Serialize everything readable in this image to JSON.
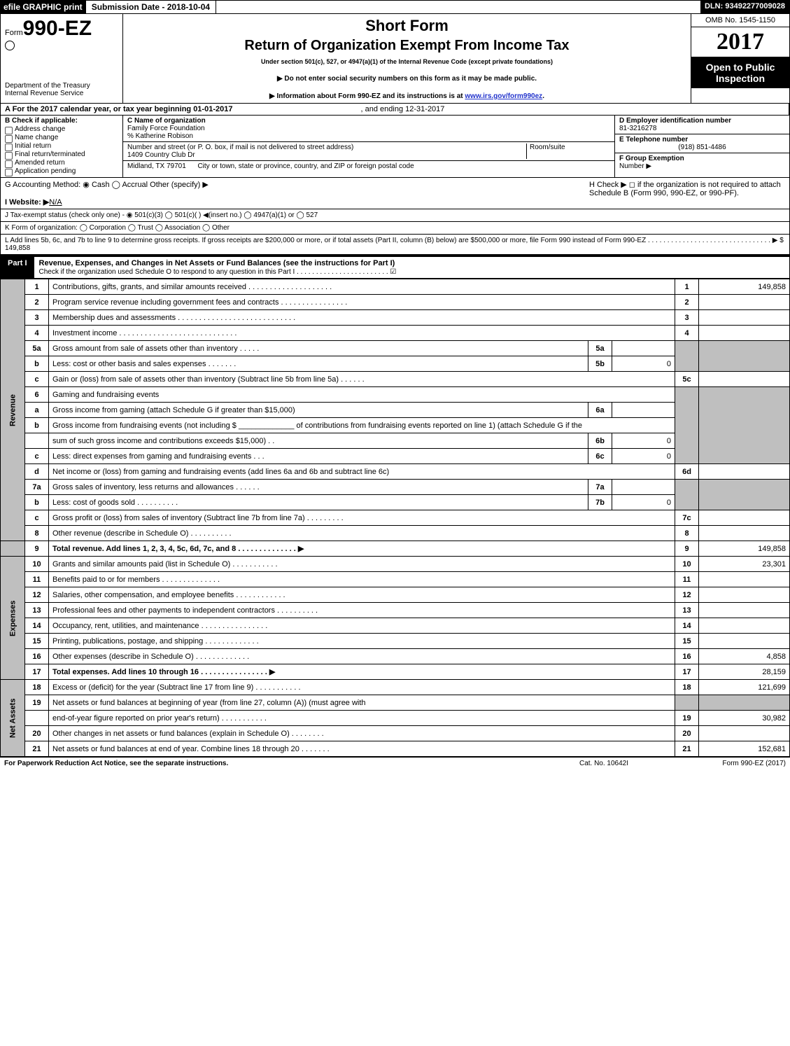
{
  "header": {
    "efile": "efile GRAPHIC print",
    "submission": "Submission Date - 2018-10-04",
    "dln": "DLN: 93492277009028"
  },
  "top": {
    "form_prefix": "Form",
    "form_no": "990-EZ",
    "dept1": "Department of the Treasury",
    "dept2": "Internal Revenue Service",
    "short": "Short Form",
    "title": "Return of Organization Exempt From Income Tax",
    "sub": "Under section 501(c), 527, or 4947(a)(1) of the Internal Revenue Code (except private foundations)",
    "n1": "▶ Do not enter social security numbers on this form as it may be made public.",
    "n2_pre": "▶ Information about Form 990-EZ and its instructions is at ",
    "n2_link": "www.irs.gov/form990ez",
    "n2_post": ".",
    "omb": "OMB No. 1545-1150",
    "year": "2017",
    "open1": "Open to Public",
    "open2": "Inspection"
  },
  "meta": {
    "A": "A  For the 2017 calendar year, or tax year beginning 01-01-2017",
    "A_end": ", and ending 12-31-2017",
    "B": "B  Check if applicable:",
    "checks": [
      "Address change",
      "Name change",
      "Initial return",
      "Final return/terminated",
      "Amended return",
      "Application pending"
    ],
    "C_label": "C Name of organization",
    "C_name": "Family Force Foundation",
    "C_co": "% Katherine Robison",
    "C_addr_label": "Number and street (or P. O. box, if mail is not delivered to street address)",
    "C_addr": "1409 Country Club Dr",
    "C_room": "Room/suite",
    "C_city_label": "City or town, state or province, country, and ZIP or foreign postal code",
    "C_city": "Midland, TX  79701",
    "D_label": "D Employer identification number",
    "D": "81-3216278",
    "E_label": "E Telephone number",
    "E": "(918) 851-4486",
    "F_label": "F Group Exemption",
    "F2": "Number     ▶",
    "G": "G Accounting Method:   ◉ Cash   ◯ Accrual   Other (specify) ▶",
    "H": "H   Check ▶  ◻  if the organization is not required to attach Schedule B (Form 990, 990-EZ, or 990-PF).",
    "I": "I Website: ▶",
    "I_val": "N/A",
    "J": "J Tax-exempt status (check only one) -  ◉ 501(c)(3)  ◯ 501(c)(  ) ◀(insert no.)  ◯ 4947(a)(1) or  ◯ 527",
    "K": "K Form of organization:   ◯ Corporation   ◯ Trust   ◯ Association   ◯ Other",
    "L": "L Add lines 5b, 6c, and 7b to line 9 to determine gross receipts. If gross receipts are $200,000 or more, or if total assets (Part II, column (B) below) are $500,000 or more, file Form 990 instead of Form 990-EZ  . . . . . . . . . . . . . . . . . . . . . . . . . . . . . . . .  ▶ $ 149,858"
  },
  "part1": {
    "tag": "Part I",
    "title": "Revenue, Expenses, and Changes in Net Assets or Fund Balances (see the instructions for Part I)",
    "sub": "Check if the organization used Schedule O to respond to any question in this Part I . . . . . . . . . . . . . . . . . . . . . . . .  ☑"
  },
  "sides": {
    "rev": "Revenue",
    "exp": "Expenses",
    "net": "Net Assets"
  },
  "rows": {
    "r1": {
      "n": "1",
      "d": "Contributions, gifts, grants, and similar amounts received . . . . . . . . . . . . . . . . . . . .",
      "v": "149,858"
    },
    "r2": {
      "n": "2",
      "d": "Program service revenue including government fees and contracts . . . . . . . . . . . . . . . ."
    },
    "r3": {
      "n": "3",
      "d": "Membership dues and assessments . . . . . . . . . . . . . . . . . . . . . . . . . . . ."
    },
    "r4": {
      "n": "4",
      "d": "Investment income . . . . . . . . . . . . . . . . . . . . . . . . . . . ."
    },
    "r5a": {
      "n": "5a",
      "d": "Gross amount from sale of assets other than inventory . . . . .",
      "sn": "5a"
    },
    "r5b": {
      "n": "b",
      "d": "Less: cost or other basis and sales expenses . . . . . . .",
      "sn": "5b",
      "sv": "0"
    },
    "r5c": {
      "n": "c",
      "d": "Gain or (loss) from sale of assets other than inventory (Subtract line 5b from line 5a)        .   .   .   .   .   ."
    },
    "r6": {
      "n": "6",
      "d": "Gaming and fundraising events"
    },
    "r6a": {
      "n": "a",
      "d": "Gross income from gaming (attach Schedule G if greater than $15,000)",
      "sn": "6a"
    },
    "r6b": {
      "n": "b",
      "d": "Gross income from fundraising events (not including $ _____________ of contributions from fundraising events reported on line 1) (attach Schedule G if the"
    },
    "r6b2": {
      "d": "sum of such gross income and contributions exceeds $15,000)      .  .",
      "sn": "6b",
      "sv": "0"
    },
    "r6c": {
      "n": "c",
      "d": "Less: direct expenses from gaming and fundraising events       .  .  .",
      "sn": "6c",
      "sv": "0"
    },
    "r6d": {
      "n": "d",
      "d": "Net income or (loss) from gaming and fundraising events (add lines 6a and 6b and subtract line 6c)"
    },
    "r7a": {
      "n": "7a",
      "d": "Gross sales of inventory, less returns and allowances         .   .   .   .   .   .",
      "sn": "7a"
    },
    "r7b": {
      "n": "b",
      "d": "Less: cost of goods sold                    .  .  .  .  .  .  .  .  .  .",
      "sn": "7b",
      "sv": "0"
    },
    "r7c": {
      "n": "c",
      "d": "Gross profit or (loss) from sales of inventory (Subtract line 7b from line 7a)         .  .  .  .  .  .  .  .  ."
    },
    "r8": {
      "n": "8",
      "d": "Other revenue (describe in Schedule O)                      .  .  .  .  .  .  .  .  .  ."
    },
    "r9": {
      "n": "9",
      "d": "Total revenue. Add lines 1, 2, 3, 4, 5c, 6d, 7c, and 8       .  .  .  .  .  .  .  .  .  .  .  .  .  .  ▶",
      "v": "149,858"
    },
    "r10": {
      "n": "10",
      "d": "Grants and similar amounts paid (list in Schedule O)            .  .  .  .  .  .  .  .  .  .  .",
      "v": "23,301"
    },
    "r11": {
      "n": "11",
      "d": "Benefits paid to or for members                    .  .  .  .  .  .  .  .  .  .  .  .  .  ."
    },
    "r12": {
      "n": "12",
      "d": "Salaries, other compensation, and employee benefits        .  .  .  .  .  .  .  .  .  .  .  ."
    },
    "r13": {
      "n": "13",
      "d": "Professional fees and other payments to independent contractors     .  .  .  .  .  .  .  .  .  ."
    },
    "r14": {
      "n": "14",
      "d": "Occupancy, rent, utilities, and maintenance       .  .  .  .  .  .  .  .  .  .  .  .  .  .  .  ."
    },
    "r15": {
      "n": "15",
      "d": "Printing, publications, postage, and shipping           .  .  .  .  .  .  .  .  .  .  .  .  ."
    },
    "r16": {
      "n": "16",
      "d": "Other expenses (describe in Schedule O)              .  .  .  .  .  .  .  .  .  .  .  .  .",
      "v": "4,858"
    },
    "r17": {
      "n": "17",
      "d": "Total expenses. Add lines 10 through 16         .  .  .  .  .  .  .  .  .  .  .  .  .  .  .  .  ▶",
      "v": "28,159"
    },
    "r18": {
      "n": "18",
      "d": "Excess or (deficit) for the year (Subtract line 17 from line 9)         .  .  .  .  .  .  .  .  .  .  .",
      "v": "121,699"
    },
    "r19": {
      "n": "19",
      "d": "Net assets or fund balances at beginning of year (from line 27, column (A)) (must agree with"
    },
    "r19b": {
      "d": "end-of-year figure reported on prior year's return)            .  .  .  .  .  .  .  .  .  .  .",
      "v": "30,982"
    },
    "r20": {
      "n": "20",
      "d": "Other changes in net assets or fund balances (explain in Schedule O)       .  .  .  .  .  .  .  ."
    },
    "r21": {
      "n": "21",
      "d": "Net assets or fund balances at end of year. Combine lines 18 through 20        .  .  .  .  .  .  .",
      "v": "152,681"
    }
  },
  "box": {
    "1": "1",
    "2": "2",
    "3": "3",
    "4": "4",
    "5c": "5c",
    "6d": "6d",
    "7c": "7c",
    "8": "8",
    "9": "9",
    "10": "10",
    "11": "11",
    "12": "12",
    "13": "13",
    "14": "14",
    "15": "15",
    "16": "16",
    "17": "17",
    "18": "18",
    "19": "19",
    "20": "20",
    "21": "21"
  },
  "footer": {
    "l": "For Paperwork Reduction Act Notice, see the separate instructions.",
    "c": "Cat. No. 10642I",
    "r": "Form 990-EZ (2017)"
  }
}
